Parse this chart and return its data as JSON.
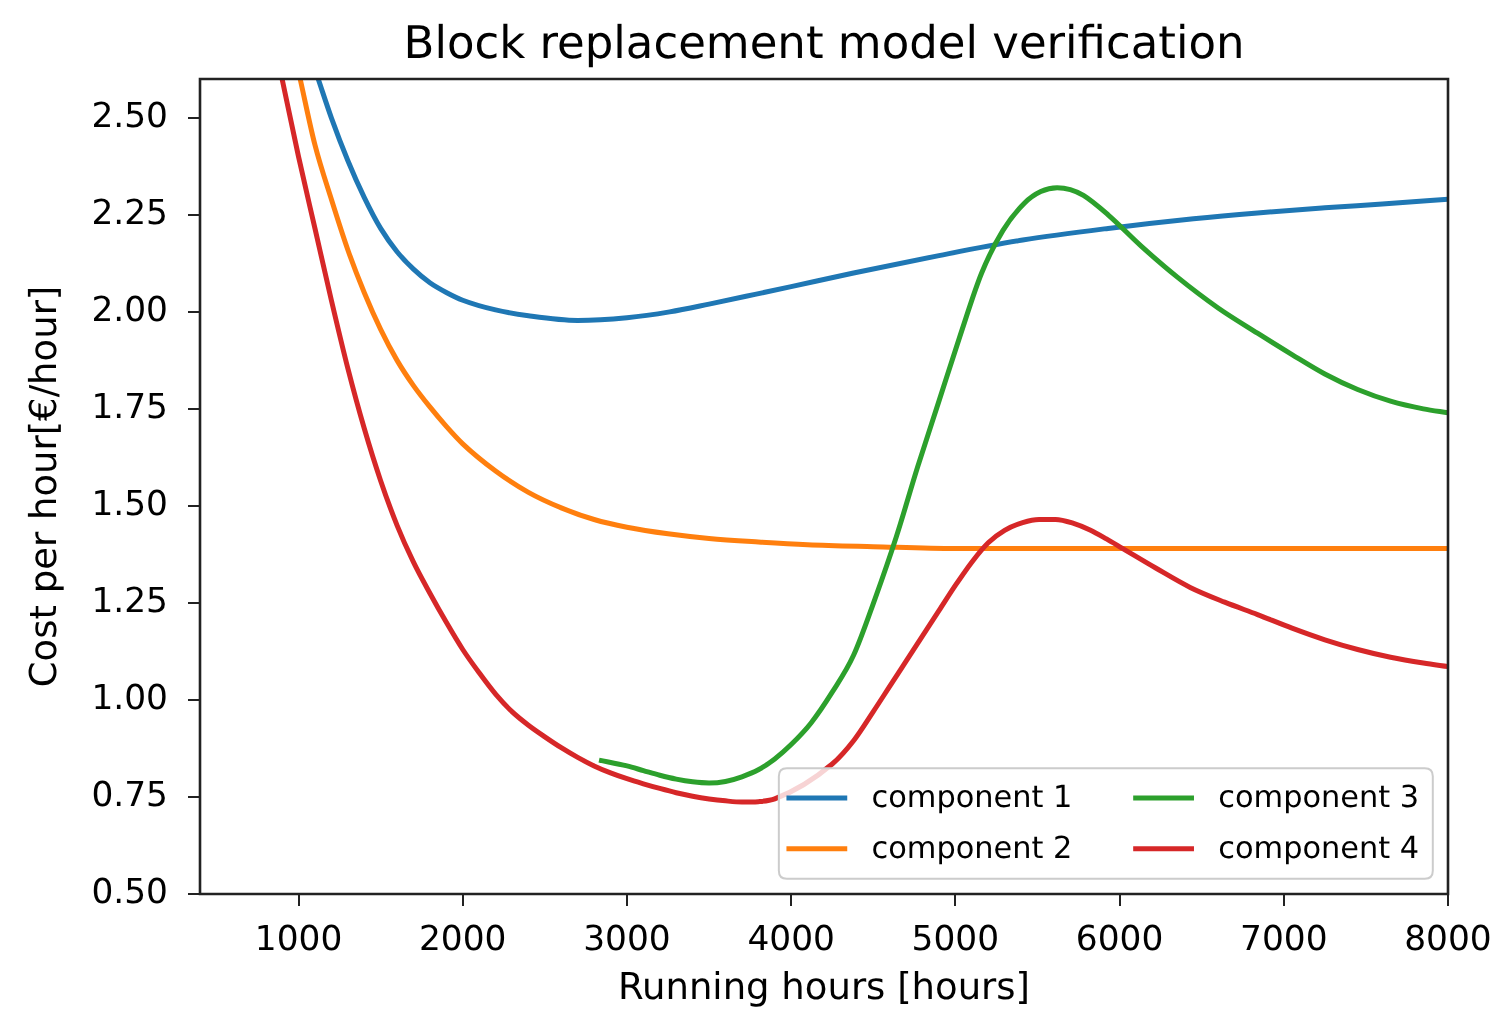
{
  "chart_data": {
    "type": "line",
    "title": "Block replacement model verification",
    "xlabel": "Running hours [hours]",
    "ylabel": "Cost per hour[€/hour]",
    "series": [
      {
        "name": "component 1",
        "color": "#1f77b4",
        "x": [
          1120,
          1200,
          1300,
          1400,
          1500,
          1600,
          1700,
          1800,
          1900,
          2000,
          2200,
          2400,
          2700,
          3000,
          3260,
          3500,
          3780,
          4000,
          4380,
          4900,
          5410,
          5930,
          6450,
          6840,
          7250,
          7600,
          8000
        ],
        "values": [
          2.6,
          2.5,
          2.39,
          2.295,
          2.215,
          2.155,
          2.11,
          2.075,
          2.05,
          2.03,
          2.005,
          1.99,
          1.978,
          1.985,
          2.0,
          2.02,
          2.045,
          2.065,
          2.1,
          2.145,
          2.185,
          2.215,
          2.24,
          2.255,
          2.268,
          2.278,
          2.29
        ]
      },
      {
        "name": "component 2",
        "color": "#ff7f0e",
        "x": [
          1010,
          1100,
          1200,
          1300,
          1400,
          1500,
          1600,
          1700,
          1800,
          1900,
          2000,
          2200,
          2400,
          2600,
          2800,
          3000,
          3250,
          3500,
          3800,
          4100,
          4500,
          5000,
          6000,
          7000,
          8000
        ],
        "values": [
          2.6,
          2.43,
          2.29,
          2.16,
          2.05,
          1.955,
          1.875,
          1.81,
          1.755,
          1.705,
          1.66,
          1.59,
          1.535,
          1.495,
          1.465,
          1.445,
          1.428,
          1.416,
          1.407,
          1.4,
          1.395,
          1.39,
          1.39,
          1.39,
          1.39
        ]
      },
      {
        "name": "component 3",
        "color": "#2ca02c",
        "x": [
          2830,
          3000,
          3100,
          3200,
          3300,
          3400,
          3500,
          3600,
          3700,
          3800,
          3900,
          4000,
          4120,
          4250,
          4380,
          4510,
          4640,
          4770,
          4900,
          5030,
          5160,
          5290,
          5420,
          5520,
          5620,
          5700,
          5780,
          5930,
          6130,
          6350,
          6600,
          6840,
          7050,
          7250,
          7450,
          7650,
          7850,
          8000
        ],
        "values": [
          0.845,
          0.83,
          0.818,
          0.806,
          0.796,
          0.789,
          0.786,
          0.79,
          0.802,
          0.82,
          0.848,
          0.885,
          0.94,
          1.02,
          1.115,
          1.26,
          1.42,
          1.6,
          1.77,
          1.94,
          2.1,
          2.21,
          2.28,
          2.31,
          2.32,
          2.315,
          2.3,
          2.25,
          2.17,
          2.09,
          2.01,
          1.945,
          1.89,
          1.84,
          1.8,
          1.77,
          1.75,
          1.74
        ]
      },
      {
        "name": "component 4",
        "color": "#d62728",
        "x": [
          900,
          1000,
          1100,
          1200,
          1300,
          1400,
          1500,
          1600,
          1700,
          1800,
          1900,
          2000,
          2100,
          2200,
          2300,
          2400,
          2500,
          2600,
          2700,
          2800,
          2900,
          3000,
          3100,
          3200,
          3300,
          3400,
          3500,
          3600,
          3700,
          3800,
          3900,
          4250,
          4380,
          4500,
          4600,
          4700,
          4800,
          4900,
          5000,
          5100,
          5200,
          5300,
          5410,
          5510,
          5610,
          5720,
          5820,
          5920,
          6020,
          6220,
          6430,
          6640,
          6840,
          7050,
          7250,
          7450,
          7650,
          7850,
          8000
        ],
        "values": [
          2.6,
          2.4,
          2.215,
          2.03,
          1.855,
          1.7,
          1.565,
          1.45,
          1.355,
          1.275,
          1.2,
          1.13,
          1.07,
          1.015,
          0.97,
          0.935,
          0.905,
          0.877,
          0.852,
          0.83,
          0.812,
          0.797,
          0.784,
          0.772,
          0.761,
          0.752,
          0.745,
          0.74,
          0.737,
          0.738,
          0.745,
          0.835,
          0.895,
          0.97,
          1.035,
          1.1,
          1.165,
          1.23,
          1.295,
          1.355,
          1.405,
          1.437,
          1.457,
          1.465,
          1.465,
          1.455,
          1.438,
          1.415,
          1.39,
          1.34,
          1.29,
          1.252,
          1.22,
          1.185,
          1.155,
          1.13,
          1.11,
          1.095,
          1.086
        ]
      }
    ],
    "xlim": [
      400,
      8000
    ],
    "xticks": [
      1000,
      2000,
      3000,
      4000,
      5000,
      6000,
      7000,
      8000
    ],
    "ylim": [
      0.5,
      2.6
    ],
    "yticks": [
      {
        "value": 0.5,
        "label": "0.50"
      },
      {
        "value": 0.75,
        "label": "0.75"
      },
      {
        "value": 1.0,
        "label": "1.00"
      },
      {
        "value": 1.25,
        "label": "1.25"
      },
      {
        "value": 1.5,
        "label": "1.50"
      },
      {
        "value": 1.75,
        "label": "1.75"
      },
      {
        "value": 2.0,
        "label": "2.00"
      },
      {
        "value": 2.25,
        "label": "2.25"
      },
      {
        "value": 2.5,
        "label": "2.50"
      }
    ],
    "legend": "bottom right"
  }
}
